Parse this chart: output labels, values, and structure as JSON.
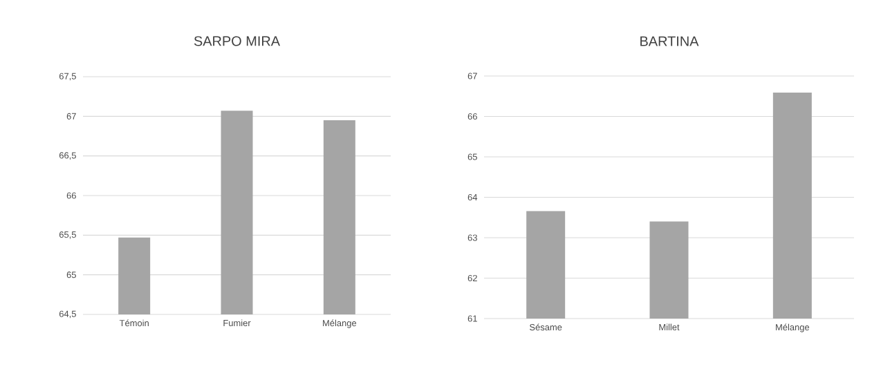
{
  "chart_data": [
    {
      "type": "bar",
      "title": "SARPO MIRA",
      "categories": [
        "Témoin",
        "Fumier",
        "Mélange"
      ],
      "values": [
        65.47,
        67.07,
        66.95
      ],
      "color": "#a5a5a5",
      "ylim": [
        64.5,
        67.5
      ],
      "yticks": [
        {
          "value": 64.5,
          "label": "64,5"
        },
        65,
        {
          "value": 65.5,
          "label": "65,5"
        },
        66,
        {
          "value": 66.5,
          "label": "66,5"
        },
        67,
        {
          "value": 67.5,
          "label": "67,5"
        }
      ],
      "grid": "y"
    },
    {
      "type": "bar",
      "title": "BARTINA",
      "categories": [
        "Sésame",
        "Millet",
        "Mélange"
      ],
      "values": [
        63.66,
        63.4,
        66.59
      ],
      "color": "#a5a5a5",
      "ylim": [
        61,
        67
      ],
      "yticks": [
        61,
        62,
        63,
        64,
        65,
        66,
        67
      ],
      "grid": "y"
    }
  ]
}
